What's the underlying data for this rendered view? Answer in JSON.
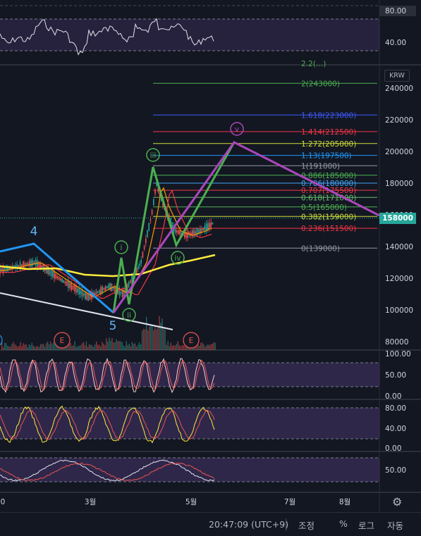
{
  "chart_data": {
    "type": "line",
    "main": {
      "currency": "KRW",
      "last_price": "158000",
      "y_ticks": [
        "240000",
        "220000",
        "200000",
        "180000",
        "160000",
        "140000",
        "120000",
        "100000",
        "80000"
      ],
      "x_ticks": [
        "0",
        "3월",
        "5월",
        "7월",
        "8월"
      ],
      "fib_levels": [
        {
          "label": "2(243000)",
          "value": 243000,
          "color": "#4caf50"
        },
        {
          "label": "1.618(223000)",
          "value": 223000,
          "color": "#3d5afe"
        },
        {
          "label": "1.414(212500)",
          "value": 212500,
          "color": "#f23645"
        },
        {
          "label": "1.272(205000)",
          "value": 205000,
          "color": "#cddc39"
        },
        {
          "label": "1.13(197500)",
          "value": 197500,
          "color": "#2196f3"
        },
        {
          "label": "1(191000)",
          "value": 191000,
          "color": "#9598a1"
        },
        {
          "label": "0.886(185000)",
          "value": 185000,
          "color": "#4caf50"
        },
        {
          "label": "0.786(180000)",
          "value": 180000,
          "color": "#42a5f5"
        },
        {
          "label": "0.707(175500)",
          "value": 175500,
          "color": "#f23645"
        },
        {
          "label": "0.618(171000)",
          "value": 171000,
          "color": "#66bb6a"
        },
        {
          "label": "0.5(165000)",
          "value": 165000,
          "color": "#4caf50"
        },
        {
          "label": "0.382(159000)",
          "value": 159000,
          "color": "#cddc39"
        },
        {
          "label": "0.236(151500)",
          "value": 151500,
          "color": "#f23645"
        },
        {
          "label": "0(139000)",
          "value": 139000,
          "color": "#9598a1"
        }
      ],
      "wave_labels_blue": [
        "4",
        "5"
      ],
      "wave_labels_circled": [
        "i",
        "ii",
        "iii",
        "iv",
        "v"
      ],
      "event_markers": [
        "E",
        "E"
      ]
    },
    "rsi_ticks": [
      "80.00",
      "40.00"
    ],
    "osc1_ticks": [
      "100.00",
      "50.00",
      "0.00"
    ],
    "osc2_ticks": [
      "80.00",
      "40.00",
      "0.00"
    ],
    "osc3_ticks": [
      "50.00"
    ]
  },
  "status": {
    "time": "20:47:09 (UTC+9)",
    "buttons": [
      "조정",
      "%",
      "로그",
      "자동"
    ]
  }
}
